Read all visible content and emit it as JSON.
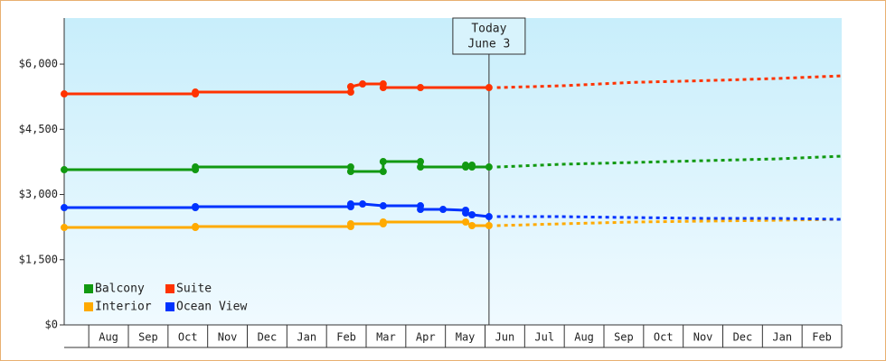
{
  "chart_data": {
    "type": "line",
    "categories": [
      "Aug",
      "Sep",
      "Oct",
      "Nov",
      "Dec",
      "Jan",
      "Feb",
      "Mar",
      "Apr",
      "May",
      "Jun",
      "Jul",
      "Aug",
      "Sep",
      "Oct",
      "Nov",
      "Dec",
      "Jan",
      "Feb"
    ],
    "xlim": [
      -0.62,
      19
    ],
    "ylim": [
      0,
      7060
    ],
    "yticks": [
      {
        "value": 0,
        "label": "$0"
      },
      {
        "value": 1500,
        "label": "$1,500"
      },
      {
        "value": 3000,
        "label": "$3,000"
      },
      {
        "value": 4500,
        "label": "$4,500"
      },
      {
        "value": 6000,
        "label": "$6,000"
      }
    ],
    "today": {
      "x": 10.1,
      "label": [
        "Today",
        "June 3"
      ]
    },
    "legend": "bottom-left",
    "series": [
      {
        "name": "Balcony",
        "color": "#119911",
        "x": [
          -0.62,
          2.69,
          2.69,
          6.61,
          6.61,
          7.43,
          7.43,
          8.37,
          8.37,
          9.51,
          9.51,
          9.67,
          9.67,
          10.1,
          10.3,
          11.9,
          13.73,
          15.55,
          17.38,
          19
        ],
        "values": [
          3571,
          3571,
          3633,
          3633,
          3529,
          3529,
          3758,
          3758,
          3633,
          3633,
          3675,
          3675,
          3633,
          3633,
          3633,
          3695,
          3737,
          3779,
          3820,
          3882
        ]
      },
      {
        "name": "Suite",
        "color": "#ff3300",
        "x": [
          -0.62,
          2.69,
          2.69,
          6.61,
          6.61,
          6.91,
          7.43,
          7.43,
          8.37,
          10.1,
          10.3,
          11.9,
          13.73,
          15.55,
          17.38,
          19
        ],
        "values": [
          5315,
          5315,
          5356,
          5356,
          5481,
          5543,
          5543,
          5460,
          5460,
          5460,
          5460,
          5500,
          5580,
          5620,
          5670,
          5730
        ]
      },
      {
        "name": "Interior",
        "color": "#ffaa00",
        "x": [
          -0.62,
          2.69,
          2.69,
          6.61,
          6.61,
          7.43,
          7.43,
          9.51,
          9.67,
          10.1,
          10.3,
          11.9,
          13.73,
          15.55,
          17.38,
          19
        ],
        "values": [
          2242,
          2242,
          2263,
          2263,
          2325,
          2325,
          2367,
          2367,
          2284,
          2284,
          2284,
          2325,
          2367,
          2388,
          2408,
          2429
        ]
      },
      {
        "name": "Ocean View",
        "color": "#0033ff",
        "x": [
          -0.62,
          2.69,
          2.69,
          6.61,
          6.61,
          6.91,
          7.43,
          8.37,
          8.37,
          8.94,
          9.51,
          9.51,
          9.67,
          10.1,
          10.3,
          11.9,
          13.73,
          15.55,
          17.38,
          19
        ],
        "values": [
          2699,
          2699,
          2720,
          2720,
          2782,
          2782,
          2740,
          2740,
          2657,
          2657,
          2637,
          2574,
          2533,
          2491,
          2491,
          2491,
          2470,
          2450,
          2450,
          2429
        ]
      }
    ]
  }
}
